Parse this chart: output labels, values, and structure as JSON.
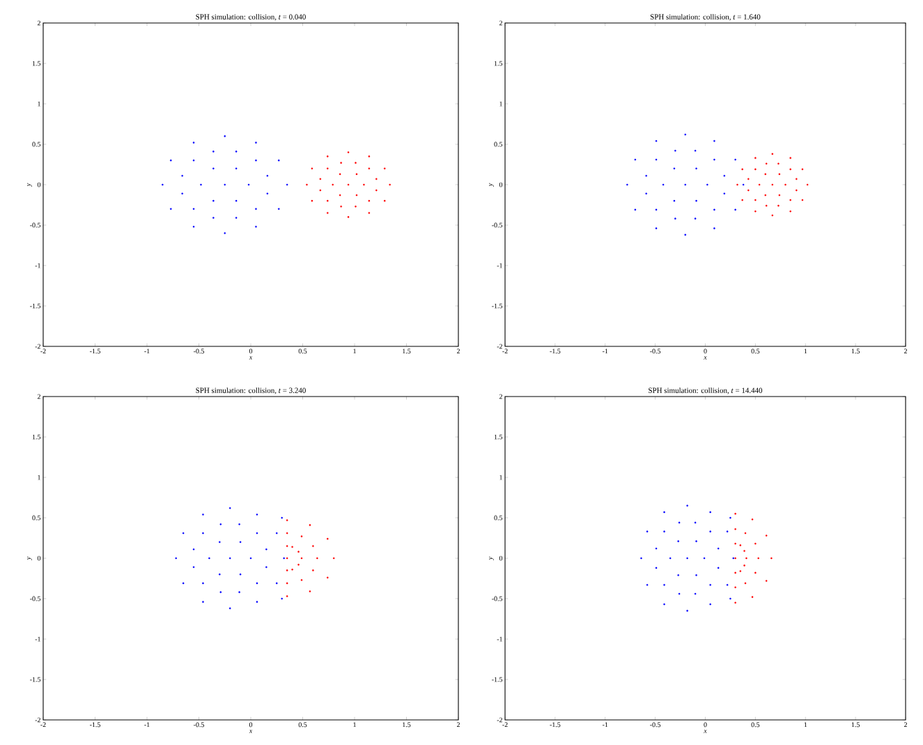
{
  "chart_data": [
    {
      "type": "scatter",
      "title": "SPH simulation: collision, *t* = 0.040",
      "xlabel": "x",
      "ylabel": "y",
      "marker": "circle",
      "xlim": [
        -2,
        2
      ],
      "ylim": [
        -2,
        2
      ],
      "xticks": [
        -2,
        -1.5,
        -1,
        -0.5,
        0,
        0.5,
        1,
        1.5,
        2
      ],
      "yticks": [
        -2,
        -1.5,
        -1,
        -0.5,
        0,
        0.5,
        1,
        1.5,
        2
      ],
      "series": [
        {
          "color": "#0000ff",
          "x": [
            0.35,
            0.27,
            0.05,
            -0.25,
            -0.55,
            -0.77,
            -0.85,
            -0.77,
            -0.55,
            -0.25,
            0.05,
            0.27,
            0.16,
            0.05,
            -0.14,
            -0.36,
            -0.55,
            -0.66,
            -0.66,
            -0.55,
            -0.36,
            -0.14,
            0.05,
            0.16,
            -0.02,
            -0.14,
            -0.36,
            -0.48,
            -0.36,
            -0.14,
            -0.25
          ],
          "values": [
            0,
            0.3,
            0.52,
            0.6,
            0.52,
            0.3,
            0,
            -0.3,
            -0.52,
            -0.6,
            -0.52,
            -0.3,
            0.11,
            0.3,
            0.41,
            0.41,
            0.3,
            0.11,
            -0.11,
            -0.3,
            -0.41,
            -0.41,
            -0.3,
            -0.11,
            0,
            0.2,
            0.2,
            0,
            -0.2,
            -0.2,
            0
          ]
        },
        {
          "color": "#ff0000",
          "x": [
            1.34,
            1.29,
            1.14,
            0.94,
            0.74,
            0.59,
            0.54,
            0.59,
            0.74,
            0.94,
            1.14,
            1.29,
            1.21,
            1.14,
            1.01,
            0.87,
            0.74,
            0.67,
            0.67,
            0.74,
            0.87,
            1.01,
            1.14,
            1.21,
            1.09,
            1.02,
            0.86,
            0.79,
            0.86,
            1.02,
            0.94
          ],
          "values": [
            0,
            0.2,
            0.35,
            0.4,
            0.35,
            0.2,
            0,
            -0.2,
            -0.35,
            -0.4,
            -0.35,
            -0.2,
            0.07,
            0.2,
            0.27,
            0.27,
            0.2,
            0.07,
            -0.07,
            -0.2,
            -0.27,
            -0.27,
            -0.2,
            -0.07,
            0,
            0.13,
            0.13,
            0,
            -0.13,
            -0.13,
            0
          ]
        }
      ]
    },
    {
      "type": "scatter",
      "title": "SPH simulation: collision, *t* = 1.640",
      "xlabel": "x",
      "ylabel": "y",
      "marker": "circle",
      "xlim": [
        -2,
        2
      ],
      "ylim": [
        -2,
        2
      ],
      "xticks": [
        -2,
        -1.5,
        -1,
        -0.5,
        0,
        0.5,
        1,
        1.5,
        2
      ],
      "yticks": [
        -2,
        -1.5,
        -1,
        -0.5,
        0,
        0.5,
        1,
        1.5,
        2
      ],
      "series": [
        {
          "color": "#0000ff",
          "x": [
            0.38,
            0.3,
            0.09,
            -0.2,
            -0.49,
            -0.7,
            -0.78,
            -0.7,
            -0.49,
            -0.2,
            0.09,
            0.3,
            0.19,
            0.09,
            -0.1,
            -0.3,
            -0.49,
            -0.59,
            -0.59,
            -0.49,
            -0.3,
            -0.1,
            0.09,
            0.19,
            0.02,
            -0.09,
            -0.31,
            -0.42,
            -0.31,
            -0.09,
            -0.2
          ],
          "values": [
            0,
            0.31,
            0.54,
            0.62,
            0.54,
            0.31,
            0,
            -0.31,
            -0.54,
            -0.62,
            -0.54,
            -0.31,
            0.11,
            0.31,
            0.42,
            0.42,
            0.31,
            0.11,
            -0.11,
            -0.31,
            -0.42,
            -0.42,
            -0.31,
            -0.11,
            0,
            0.2,
            0.2,
            0,
            -0.2,
            -0.2,
            0
          ]
        },
        {
          "color": "#ff0000",
          "x": [
            1.02,
            0.97,
            0.85,
            0.67,
            0.5,
            0.37,
            0.32,
            0.37,
            0.5,
            0.67,
            0.85,
            0.97,
            0.91,
            0.85,
            0.73,
            0.61,
            0.5,
            0.43,
            0.43,
            0.5,
            0.61,
            0.73,
            0.85,
            0.91,
            0.8,
            0.74,
            0.6,
            0.54,
            0.6,
            0.74,
            0.67
          ],
          "values": [
            0,
            0.19,
            0.33,
            0.38,
            0.33,
            0.19,
            0,
            -0.19,
            -0.33,
            -0.38,
            -0.33,
            -0.19,
            0.07,
            0.19,
            0.26,
            0.26,
            0.19,
            0.07,
            -0.07,
            -0.19,
            -0.26,
            -0.26,
            -0.19,
            -0.07,
            0,
            0.13,
            0.13,
            0,
            -0.13,
            -0.13,
            0
          ]
        }
      ]
    },
    {
      "type": "scatter",
      "title": "SPH simulation: collision, *t* = 3.240",
      "xlabel": "x",
      "ylabel": "y",
      "marker": "circle",
      "xlim": [
        -2,
        2
      ],
      "ylim": [
        -2,
        2
      ],
      "xticks": [
        -2,
        -1.5,
        -1,
        -0.5,
        0,
        0.5,
        1,
        1.5,
        2
      ],
      "yticks": [
        -2,
        -1.5,
        -1,
        -0.5,
        0,
        0.5,
        1,
        1.5,
        2
      ],
      "series": [
        {
          "color": "#0000ff",
          "x": [
            0.32,
            0.25,
            0.06,
            -0.2,
            -0.46,
            -0.65,
            -0.72,
            -0.65,
            -0.46,
            -0.2,
            0.06,
            0.25,
            0.3,
            0.3,
            0.15,
            0.06,
            -0.11,
            -0.29,
            -0.46,
            -0.55,
            -0.55,
            -0.46,
            -0.29,
            -0.11,
            0.06,
            0.15,
            0,
            -0.1,
            -0.3,
            -0.4,
            -0.3,
            -0.1,
            -0.2
          ],
          "values": [
            0,
            0.31,
            0.54,
            0.62,
            0.54,
            0.31,
            0,
            -0.31,
            -0.54,
            -0.62,
            -0.54,
            -0.31,
            0.5,
            -0.5,
            0.11,
            0.31,
            0.42,
            0.42,
            0.31,
            0.11,
            -0.11,
            -0.31,
            -0.42,
            -0.42,
            -0.31,
            -0.11,
            0,
            0.2,
            0.2,
            0,
            -0.2,
            -0.2,
            0
          ]
        },
        {
          "color": "#ff0000",
          "x": [
            0.8,
            0.74,
            0.57,
            0.35,
            0.57,
            0.74,
            0.35,
            0.64,
            0.6,
            0.49,
            0.35,
            0.6,
            0.49,
            0.35,
            0.49,
            0.46,
            0.4,
            0.46,
            0.4,
            0.35,
            0.35,
            0.35
          ],
          "values": [
            0,
            0.24,
            0.41,
            0.47,
            -0.41,
            -0.24,
            -0.47,
            0,
            0.15,
            0.27,
            0.31,
            -0.15,
            -0.27,
            -0.31,
            0,
            0.08,
            0.14,
            -0.08,
            -0.14,
            0,
            0.15,
            -0.15
          ]
        }
      ]
    },
    {
      "type": "scatter",
      "title": "SPH simulation: collision, *t* = 14.440",
      "xlabel": "x",
      "ylabel": "y",
      "marker": "circle",
      "xlim": [
        -2,
        2
      ],
      "ylim": [
        -2,
        2
      ],
      "xticks": [
        -2,
        -1.5,
        -1,
        -0.5,
        0,
        0.5,
        1,
        1.5,
        2
      ],
      "yticks": [
        -2,
        -1.5,
        -1,
        -0.5,
        0,
        0.5,
        1,
        1.5,
        2
      ],
      "series": [
        {
          "color": "#0000ff",
          "x": [
            0.28,
            0.22,
            0.05,
            -0.18,
            -0.41,
            -0.58,
            -0.64,
            -0.58,
            -0.41,
            -0.18,
            0.05,
            0.22,
            0.25,
            0.25,
            0.13,
            0.05,
            -0.1,
            -0.26,
            -0.41,
            -0.49,
            -0.49,
            -0.41,
            -0.26,
            -0.1,
            0.05,
            0.13,
            -0.01,
            -0.09,
            -0.27,
            -0.35,
            -0.27,
            -0.09,
            -0.18
          ],
          "values": [
            0,
            0.33,
            0.57,
            0.65,
            0.57,
            0.33,
            0,
            -0.33,
            -0.57,
            -0.65,
            -0.57,
            -0.33,
            0.5,
            -0.5,
            0.12,
            0.33,
            0.44,
            0.44,
            0.33,
            0.12,
            -0.12,
            -0.33,
            -0.44,
            -0.44,
            -0.33,
            -0.12,
            0,
            0.21,
            0.21,
            0,
            -0.21,
            -0.21,
            0
          ]
        },
        {
          "color": "#ff0000",
          "x": [
            0.66,
            0.61,
            0.47,
            0.3,
            0.47,
            0.61,
            0.3,
            0.53,
            0.5,
            0.4,
            0.3,
            0.5,
            0.4,
            0.3,
            0.41,
            0.39,
            0.35,
            0.39,
            0.35,
            0.3,
            0.3,
            0.3
          ],
          "values": [
            0,
            0.28,
            0.48,
            0.55,
            -0.48,
            -0.28,
            -0.55,
            0,
            0.18,
            0.31,
            0.36,
            -0.18,
            -0.31,
            -0.36,
            0,
            0.09,
            0.16,
            -0.09,
            -0.16,
            0,
            0.18,
            -0.18
          ]
        }
      ]
    }
  ]
}
